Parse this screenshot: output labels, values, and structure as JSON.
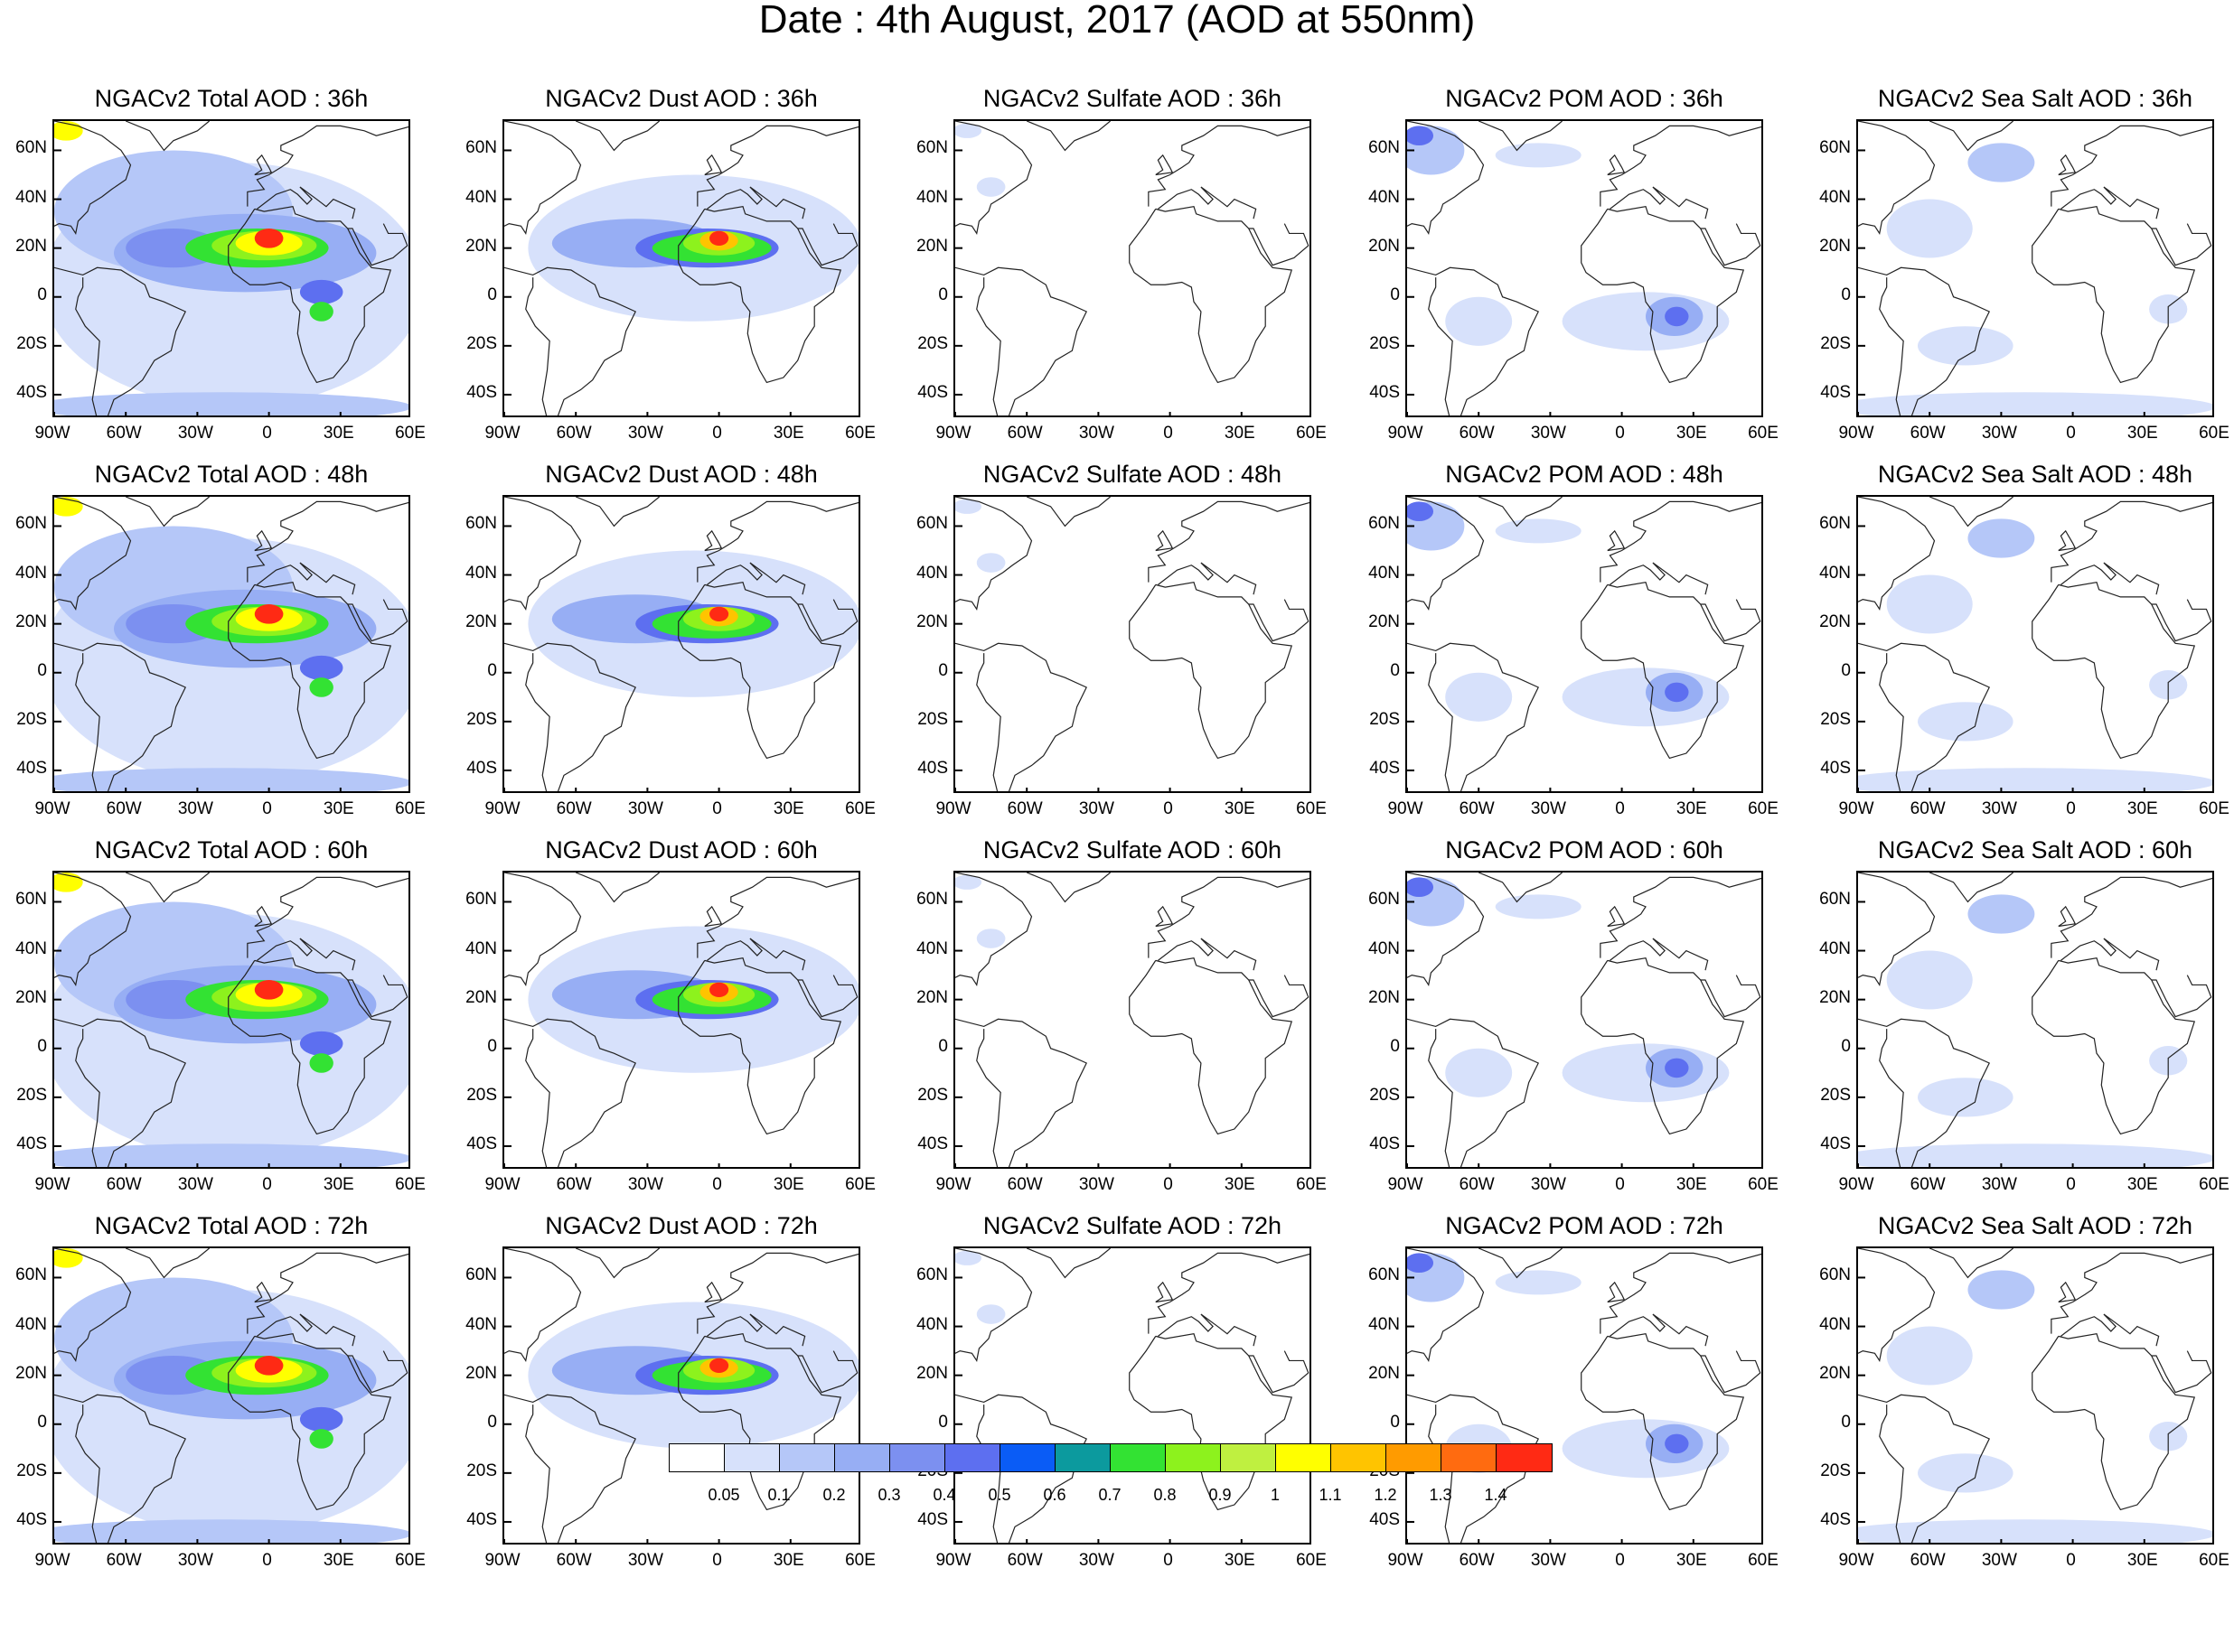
{
  "title": "Date : 4th August, 2017 (AOD at 550nm)",
  "lat_labels": [
    "60N",
    "40N",
    "20N",
    "0",
    "20S",
    "40S"
  ],
  "lon_labels": [
    "90W",
    "60W",
    "30W",
    "0",
    "30E",
    "60E"
  ],
  "lat_values": [
    60,
    40,
    20,
    0,
    -20,
    -40
  ],
  "lon_values": [
    -90,
    -60,
    -30,
    0,
    30,
    60
  ],
  "map_extent": {
    "lon_min": -90,
    "lon_max": 60,
    "lat_min": -50,
    "lat_max": 72
  },
  "panels": [
    {
      "title": "NGACv2 Total AOD : 36h",
      "species": "total",
      "forecast_hour": 36
    },
    {
      "title": "NGACv2 Dust AOD : 36h",
      "species": "dust",
      "forecast_hour": 36
    },
    {
      "title": "NGACv2 Sulfate AOD : 36h",
      "species": "sulfate",
      "forecast_hour": 36
    },
    {
      "title": "NGACv2 POM AOD : 36h",
      "species": "pom",
      "forecast_hour": 36
    },
    {
      "title": "NGACv2 Sea Salt AOD : 36h",
      "species": "seasalt",
      "forecast_hour": 36
    },
    {
      "title": "NGACv2 Total AOD : 48h",
      "species": "total",
      "forecast_hour": 48
    },
    {
      "title": "NGACv2 Dust AOD : 48h",
      "species": "dust",
      "forecast_hour": 48
    },
    {
      "title": "NGACv2 Sulfate AOD : 48h",
      "species": "sulfate",
      "forecast_hour": 48
    },
    {
      "title": "NGACv2 POM AOD : 48h",
      "species": "pom",
      "forecast_hour": 48
    },
    {
      "title": "NGACv2 Sea Salt AOD : 48h",
      "species": "seasalt",
      "forecast_hour": 48
    },
    {
      "title": "NGACv2 Total AOD : 60h",
      "species": "total",
      "forecast_hour": 60
    },
    {
      "title": "NGACv2 Dust AOD : 60h",
      "species": "dust",
      "forecast_hour": 60
    },
    {
      "title": "NGACv2 Sulfate AOD : 60h",
      "species": "sulfate",
      "forecast_hour": 60
    },
    {
      "title": "NGACv2 POM AOD : 60h",
      "species": "pom",
      "forecast_hour": 60
    },
    {
      "title": "NGACv2 Sea Salt AOD : 60h",
      "species": "seasalt",
      "forecast_hour": 60
    },
    {
      "title": "NGACv2 Total AOD : 72h",
      "species": "total",
      "forecast_hour": 72
    },
    {
      "title": "NGACv2 Dust AOD : 72h",
      "species": "dust",
      "forecast_hour": 72
    },
    {
      "title": "NGACv2 Sulfate AOD : 72h",
      "species": "sulfate",
      "forecast_hour": 72
    },
    {
      "title": "NGACv2 POM AOD : 72h",
      "species": "pom",
      "forecast_hour": 72
    },
    {
      "title": "NGACv2 Sea Salt  AOD : 72h",
      "species": "seasalt",
      "forecast_hour": 72
    }
  ],
  "colorbar": {
    "labels": [
      "0.05",
      "0.1",
      "0.2",
      "0.3",
      "0.4",
      "0.5",
      "0.6",
      "0.7",
      "0.8",
      "0.9",
      "1",
      "1.1",
      "1.2",
      "1.3",
      "1.4"
    ],
    "colors": [
      "#ffffff",
      "#d7e1fb",
      "#b5c7f8",
      "#97aef4",
      "#7c90f0",
      "#5d6ff0",
      "#0a5cf6",
      "#0c9a9e",
      "#33e233",
      "#8df21d",
      "#bff040",
      "#ffff00",
      "#ffc400",
      "#ff9b00",
      "#ff6b10",
      "#ff2a14"
    ]
  }
}
